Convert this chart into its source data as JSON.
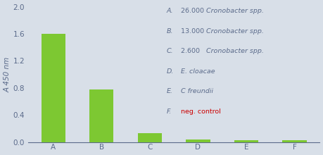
{
  "categories": [
    "A",
    "B",
    "C",
    "D",
    "E",
    "F"
  ],
  "values": [
    1.6,
    0.78,
    0.13,
    0.04,
    0.025,
    0.03
  ],
  "bar_color": "#7dc832",
  "background_color": "#d8dfe8",
  "ylabel": "A 450 nm",
  "ylim": [
    0,
    2.0
  ],
  "yticks": [
    0.0,
    0.4,
    0.8,
    1.2,
    1.6,
    2.0
  ],
  "legend_text_color": "#5a6a8a",
  "neg_control_color": "#cc0000",
  "axis_color": "#5a6a8a",
  "tick_color": "#5a6a8a",
  "legend_fontsize": 6.8,
  "ylabel_fontsize": 7.5,
  "xtick_fontsize": 7.5,
  "ytick_fontsize": 7.5,
  "legend_items": [
    {
      "label": "A.",
      "num": "26.000",
      "italic": "Cronobacter spp.",
      "red": false
    },
    {
      "label": "B.",
      "num": "13.000",
      "italic": "Cronobacter spp.",
      "red": false
    },
    {
      "label": "C.",
      "num": "2.600",
      "italic": "Cronobacter spp.",
      "red": false
    },
    {
      "label": "D.",
      "num": "",
      "italic": "E. cloacae",
      "red": false
    },
    {
      "label": "E.",
      "num": "",
      "italic": "C freundii",
      "red": false
    },
    {
      "label": "F.",
      "num": "",
      "italic": "",
      "red": true,
      "plain": "neg. control"
    }
  ]
}
